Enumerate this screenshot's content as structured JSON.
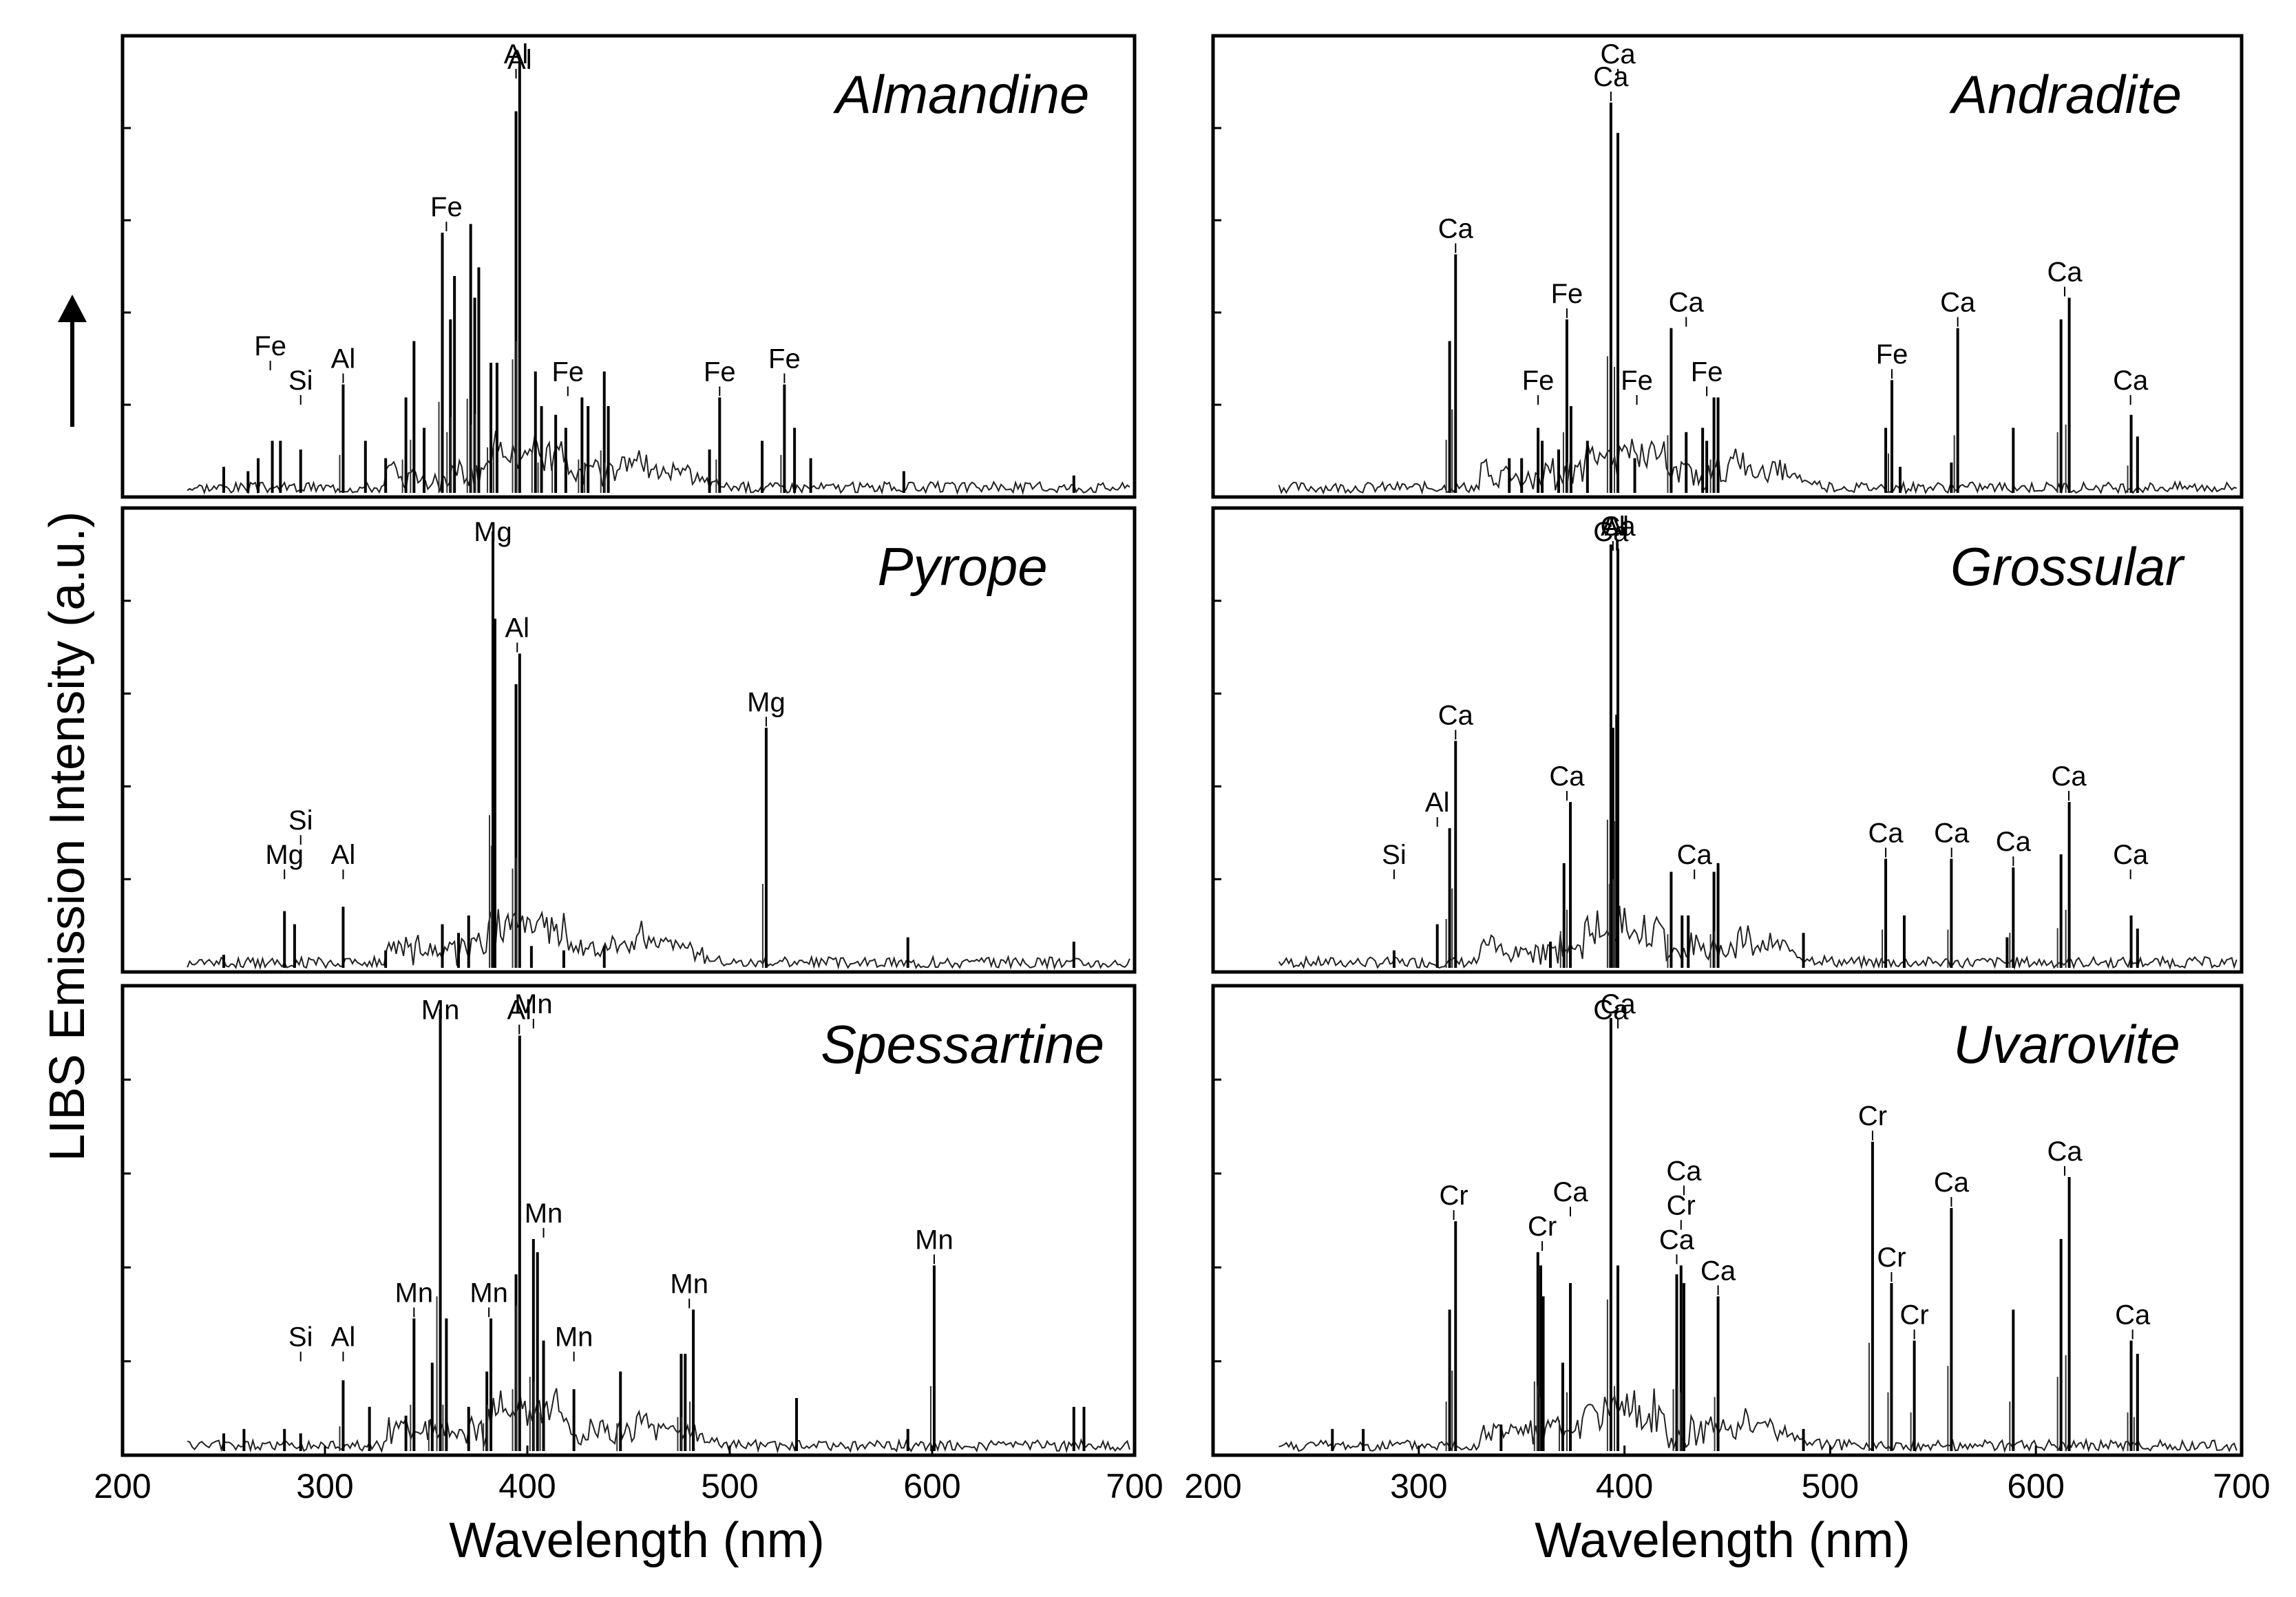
{
  "figure": {
    "ylabel": "LIBS Emission Intensity (a.u.)",
    "xlabel": "Wavelength (nm)",
    "x_ticks": [
      "200",
      "300",
      "400",
      "500",
      "600",
      "700"
    ]
  },
  "chart_data": [
    {
      "type": "line",
      "title": "Almandine",
      "xlabel": "Wavelength (nm)",
      "ylabel": "LIBS Emission Intensity (a.u.)",
      "xlim": [
        200,
        700
      ],
      "ylim": [
        0,
        1
      ],
      "peaks": [
        {
          "x": 250,
          "y": 0.06
        },
        {
          "x": 262,
          "y": 0.05
        },
        {
          "x": 267,
          "y": 0.08
        },
        {
          "x": 274,
          "y": 0.12
        },
        {
          "x": 278,
          "y": 0.12
        },
        {
          "x": 288,
          "y": 0.1
        },
        {
          "x": 309,
          "y": 0.25
        },
        {
          "x": 320,
          "y": 0.12
        },
        {
          "x": 330,
          "y": 0.08
        },
        {
          "x": 340,
          "y": 0.22
        },
        {
          "x": 344,
          "y": 0.35
        },
        {
          "x": 349,
          "y": 0.15
        },
        {
          "x": 358,
          "y": 0.6
        },
        {
          "x": 362,
          "y": 0.4
        },
        {
          "x": 364,
          "y": 0.5
        },
        {
          "x": 372,
          "y": 0.62
        },
        {
          "x": 374,
          "y": 0.45
        },
        {
          "x": 376,
          "y": 0.52
        },
        {
          "x": 382,
          "y": 0.3
        },
        {
          "x": 385,
          "y": 0.3
        },
        {
          "x": 394.4,
          "y": 0.88
        },
        {
          "x": 396.2,
          "y": 1.0
        },
        {
          "x": 404,
          "y": 0.28
        },
        {
          "x": 407,
          "y": 0.2
        },
        {
          "x": 414,
          "y": 0.18
        },
        {
          "x": 419,
          "y": 0.15
        },
        {
          "x": 427,
          "y": 0.22
        },
        {
          "x": 430,
          "y": 0.2
        },
        {
          "x": 438,
          "y": 0.28
        },
        {
          "x": 440,
          "y": 0.2
        },
        {
          "x": 490,
          "y": 0.1
        },
        {
          "x": 495,
          "y": 0.22
        },
        {
          "x": 516,
          "y": 0.12
        },
        {
          "x": 527,
          "y": 0.25
        },
        {
          "x": 532,
          "y": 0.15
        },
        {
          "x": 540,
          "y": 0.08
        },
        {
          "x": 586,
          "y": 0.05
        },
        {
          "x": 670,
          "y": 0.04
        }
      ],
      "annotations": [
        {
          "text": "Al",
          "x": 396.2
        },
        {
          "text": "Al",
          "x": 394.4
        },
        {
          "text": "Fe",
          "x": 360
        },
        {
          "text": "Fe",
          "x": 420
        },
        {
          "text": "Al",
          "x": 309
        },
        {
          "text": "Si",
          "x": 288
        },
        {
          "text": "Fe",
          "x": 273
        },
        {
          "text": "Fe",
          "x": 495
        },
        {
          "text": "Fe",
          "x": 527
        }
      ]
    },
    {
      "type": "line",
      "title": "Pyrope",
      "xlabel": "Wavelength (nm)",
      "ylabel": "LIBS Emission Intensity (a.u.)",
      "xlim": [
        200,
        700
      ],
      "ylim": [
        0,
        1
      ],
      "peaks": [
        {
          "x": 250,
          "y": 0.03
        },
        {
          "x": 280,
          "y": 0.13
        },
        {
          "x": 285,
          "y": 0.1
        },
        {
          "x": 309,
          "y": 0.14
        },
        {
          "x": 330,
          "y": 0.04
        },
        {
          "x": 358,
          "y": 0.1
        },
        {
          "x": 366,
          "y": 0.08
        },
        {
          "x": 371,
          "y": 0.12
        },
        {
          "x": 383,
          "y": 1.0
        },
        {
          "x": 384,
          "y": 0.8
        },
        {
          "x": 394.4,
          "y": 0.65
        },
        {
          "x": 396.2,
          "y": 0.72
        },
        {
          "x": 402,
          "y": 0.05
        },
        {
          "x": 418,
          "y": 0.04
        },
        {
          "x": 438,
          "y": 0.05
        },
        {
          "x": 518,
          "y": 0.55
        },
        {
          "x": 588,
          "y": 0.07
        },
        {
          "x": 670,
          "y": 0.06
        }
      ],
      "annotations": [
        {
          "text": "Mg",
          "x": 383
        },
        {
          "text": "Al",
          "x": 395
        },
        {
          "text": "Mg",
          "x": 518
        },
        {
          "text": "Mg",
          "x": 280
        },
        {
          "text": "Si",
          "x": 288
        },
        {
          "text": "Al",
          "x": 309
        }
      ]
    },
    {
      "type": "line",
      "title": "Spessartine",
      "xlabel": "Wavelength (nm)",
      "ylabel": "LIBS Emission Intensity (a.u.)",
      "xlim": [
        200,
        700
      ],
      "ylim": [
        0,
        1
      ],
      "peaks": [
        {
          "x": 250,
          "y": 0.04
        },
        {
          "x": 260,
          "y": 0.05
        },
        {
          "x": 280,
          "y": 0.05
        },
        {
          "x": 288,
          "y": 0.04
        },
        {
          "x": 309,
          "y": 0.16
        },
        {
          "x": 322,
          "y": 0.1
        },
        {
          "x": 340,
          "y": 0.08
        },
        {
          "x": 344,
          "y": 0.3
        },
        {
          "x": 353,
          "y": 0.2
        },
        {
          "x": 357,
          "y": 1.0
        },
        {
          "x": 360,
          "y": 0.3
        },
        {
          "x": 371,
          "y": 0.1
        },
        {
          "x": 380,
          "y": 0.18
        },
        {
          "x": 382,
          "y": 0.3
        },
        {
          "x": 394.4,
          "y": 0.4
        },
        {
          "x": 396.2,
          "y": 0.94
        },
        {
          "x": 403,
          "y": 0.48
        },
        {
          "x": 405,
          "y": 0.45
        },
        {
          "x": 408,
          "y": 0.25
        },
        {
          "x": 423,
          "y": 0.14
        },
        {
          "x": 446,
          "y": 0.18
        },
        {
          "x": 476,
          "y": 0.22
        },
        {
          "x": 478,
          "y": 0.22
        },
        {
          "x": 482,
          "y": 0.32
        },
        {
          "x": 533,
          "y": 0.12
        },
        {
          "x": 588,
          "y": 0.05
        },
        {
          "x": 601,
          "y": 0.42
        },
        {
          "x": 670,
          "y": 0.1
        },
        {
          "x": 675,
          "y": 0.1
        }
      ],
      "annotations": [
        {
          "text": "Mn",
          "x": 357
        },
        {
          "text": "Al",
          "x": 396
        },
        {
          "text": "Mn",
          "x": 403
        },
        {
          "text": "Mn",
          "x": 381
        },
        {
          "text": "Mn",
          "x": 344
        },
        {
          "text": "Al",
          "x": 309
        },
        {
          "text": "Si",
          "x": 288
        },
        {
          "text": "Mn",
          "x": 408
        },
        {
          "text": "Mn",
          "x": 423
        },
        {
          "text": "Mn",
          "x": 480
        },
        {
          "text": "Mn",
          "x": 601
        }
      ]
    },
    {
      "type": "line",
      "title": "Andradite",
      "xlabel": "Wavelength (nm)",
      "ylabel": "LIBS Emission Intensity (a.u.)",
      "xlim": [
        200,
        700
      ],
      "ylim": [
        0,
        1
      ],
      "peaks": [
        {
          "x": 315,
          "y": 0.35
        },
        {
          "x": 317.9,
          "y": 0.55
        },
        {
          "x": 344,
          "y": 0.08
        },
        {
          "x": 350,
          "y": 0.08
        },
        {
          "x": 358,
          "y": 0.15
        },
        {
          "x": 360,
          "y": 0.12
        },
        {
          "x": 368,
          "y": 0.1
        },
        {
          "x": 372,
          "y": 0.4
        },
        {
          "x": 374,
          "y": 0.2
        },
        {
          "x": 382,
          "y": 0.12
        },
        {
          "x": 393.4,
          "y": 0.9
        },
        {
          "x": 396.8,
          "y": 0.83
        },
        {
          "x": 405,
          "y": 0.08
        },
        {
          "x": 422.7,
          "y": 0.38
        },
        {
          "x": 430,
          "y": 0.14
        },
        {
          "x": 438,
          "y": 0.15
        },
        {
          "x": 440,
          "y": 0.12
        },
        {
          "x": 443.5,
          "y": 0.22
        },
        {
          "x": 445.5,
          "y": 0.22
        },
        {
          "x": 527,
          "y": 0.15
        },
        {
          "x": 530,
          "y": 0.26
        },
        {
          "x": 534,
          "y": 0.06
        },
        {
          "x": 558.9,
          "y": 0.07
        },
        {
          "x": 562,
          "y": 0.38
        },
        {
          "x": 589,
          "y": 0.15
        },
        {
          "x": 612.2,
          "y": 0.4
        },
        {
          "x": 616.2,
          "y": 0.45
        },
        {
          "x": 646.3,
          "y": 0.18
        },
        {
          "x": 649.4,
          "y": 0.13
        }
      ],
      "annotations": [
        {
          "text": "Ca",
          "x": 393.4
        },
        {
          "text": "Ca",
          "x": 396.8
        },
        {
          "text": "Ca",
          "x": 317.9
        },
        {
          "text": "Fe",
          "x": 372
        },
        {
          "text": "Ca",
          "x": 430
        },
        {
          "text": "Fe",
          "x": 358
        },
        {
          "text": "Fe",
          "x": 406
        },
        {
          "text": "Fe",
          "x": 440
        },
        {
          "text": "Fe",
          "x": 530
        },
        {
          "text": "Ca",
          "x": 562
        },
        {
          "text": "Ca",
          "x": 614
        },
        {
          "text": "Ca",
          "x": 646
        }
      ]
    },
    {
      "type": "line",
      "title": "Grossular",
      "xlabel": "Wavelength (nm)",
      "ylabel": "LIBS Emission Intensity (a.u.)",
      "xlim": [
        200,
        700
      ],
      "ylim": [
        0,
        1
      ],
      "peaks": [
        {
          "x": 288,
          "y": 0.04
        },
        {
          "x": 309,
          "y": 0.1
        },
        {
          "x": 315,
          "y": 0.32
        },
        {
          "x": 317.9,
          "y": 0.52
        },
        {
          "x": 364,
          "y": 0.06
        },
        {
          "x": 370.6,
          "y": 0.24
        },
        {
          "x": 373.7,
          "y": 0.38
        },
        {
          "x": 393.4,
          "y": 0.97
        },
        {
          "x": 394.4,
          "y": 0.55
        },
        {
          "x": 396.2,
          "y": 0.58
        },
        {
          "x": 396.8,
          "y": 0.96
        },
        {
          "x": 422.7,
          "y": 0.22
        },
        {
          "x": 428,
          "y": 0.12
        },
        {
          "x": 431,
          "y": 0.12
        },
        {
          "x": 443.5,
          "y": 0.22
        },
        {
          "x": 445.5,
          "y": 0.24
        },
        {
          "x": 487,
          "y": 0.08
        },
        {
          "x": 527,
          "y": 0.25
        },
        {
          "x": 536,
          "y": 0.12
        },
        {
          "x": 558.9,
          "y": 0.25
        },
        {
          "x": 586,
          "y": 0.07
        },
        {
          "x": 589,
          "y": 0.23
        },
        {
          "x": 612.2,
          "y": 0.26
        },
        {
          "x": 616.2,
          "y": 0.38
        },
        {
          "x": 646.3,
          "y": 0.12
        },
        {
          "x": 649.4,
          "y": 0.09
        }
      ],
      "annotations": [
        {
          "text": "Ca",
          "x": 393.4
        },
        {
          "text": "Ca",
          "x": 396.8
        },
        {
          "text": "Al",
          "x": 396.2
        },
        {
          "text": "Al",
          "x": 394.4
        },
        {
          "text": "Ca",
          "x": 317.9
        },
        {
          "text": "Ca",
          "x": 372
        },
        {
          "text": "Si",
          "x": 288
        },
        {
          "text": "Al",
          "x": 309
        },
        {
          "text": "Ca",
          "x": 434
        },
        {
          "text": "Ca",
          "x": 527
        },
        {
          "text": "Ca",
          "x": 559
        },
        {
          "text": "Ca",
          "x": 589
        },
        {
          "text": "Ca",
          "x": 616
        },
        {
          "text": "Ca",
          "x": 646
        }
      ]
    },
    {
      "type": "line",
      "title": "Uvarovite",
      "xlabel": "Wavelength (nm)",
      "ylabel": "LIBS Emission Intensity (a.u.)",
      "xlim": [
        200,
        700
      ],
      "ylim": [
        0,
        1
      ],
      "peaks": [
        {
          "x": 258,
          "y": 0.05
        },
        {
          "x": 273,
          "y": 0.05
        },
        {
          "x": 315,
          "y": 0.32
        },
        {
          "x": 317.9,
          "y": 0.52
        },
        {
          "x": 340,
          "y": 0.06
        },
        {
          "x": 357.9,
          "y": 0.45
        },
        {
          "x": 359.3,
          "y": 0.42
        },
        {
          "x": 360.5,
          "y": 0.35
        },
        {
          "x": 370,
          "y": 0.2
        },
        {
          "x": 373.7,
          "y": 0.38
        },
        {
          "x": 393.4,
          "y": 0.98
        },
        {
          "x": 396.8,
          "y": 0.42
        },
        {
          "x": 425.4,
          "y": 0.4
        },
        {
          "x": 427.5,
          "y": 0.42
        },
        {
          "x": 428.9,
          "y": 0.38
        },
        {
          "x": 445.5,
          "y": 0.35
        },
        {
          "x": 487,
          "y": 0.05
        },
        {
          "x": 520.6,
          "y": 0.7
        },
        {
          "x": 529.8,
          "y": 0.38
        },
        {
          "x": 540.9,
          "y": 0.25
        },
        {
          "x": 558.9,
          "y": 0.55
        },
        {
          "x": 589,
          "y": 0.32
        },
        {
          "x": 612.2,
          "y": 0.48
        },
        {
          "x": 616.2,
          "y": 0.62
        },
        {
          "x": 646.3,
          "y": 0.25
        },
        {
          "x": 649.4,
          "y": 0.22
        }
      ],
      "annotations": [
        {
          "text": "Ca",
          "x": 393.4
        },
        {
          "text": "Ca",
          "x": 396.8
        },
        {
          "text": "Cr",
          "x": 317
        },
        {
          "text": "Cr",
          "x": 360
        },
        {
          "text": "Ca",
          "x": 373.7
        },
        {
          "text": "Ca",
          "x": 425.4
        },
        {
          "text": "Cr",
          "x": 427.5
        },
        {
          "text": "Ca",
          "x": 428.9
        },
        {
          "text": "Ca",
          "x": 445.5
        },
        {
          "text": "Cr",
          "x": 520.6
        },
        {
          "text": "Cr",
          "x": 529.8
        },
        {
          "text": "Cr",
          "x": 540.9
        },
        {
          "text": "Ca",
          "x": 558.9
        },
        {
          "text": "Ca",
          "x": 614
        },
        {
          "text": "Ca",
          "x": 647
        }
      ]
    }
  ]
}
